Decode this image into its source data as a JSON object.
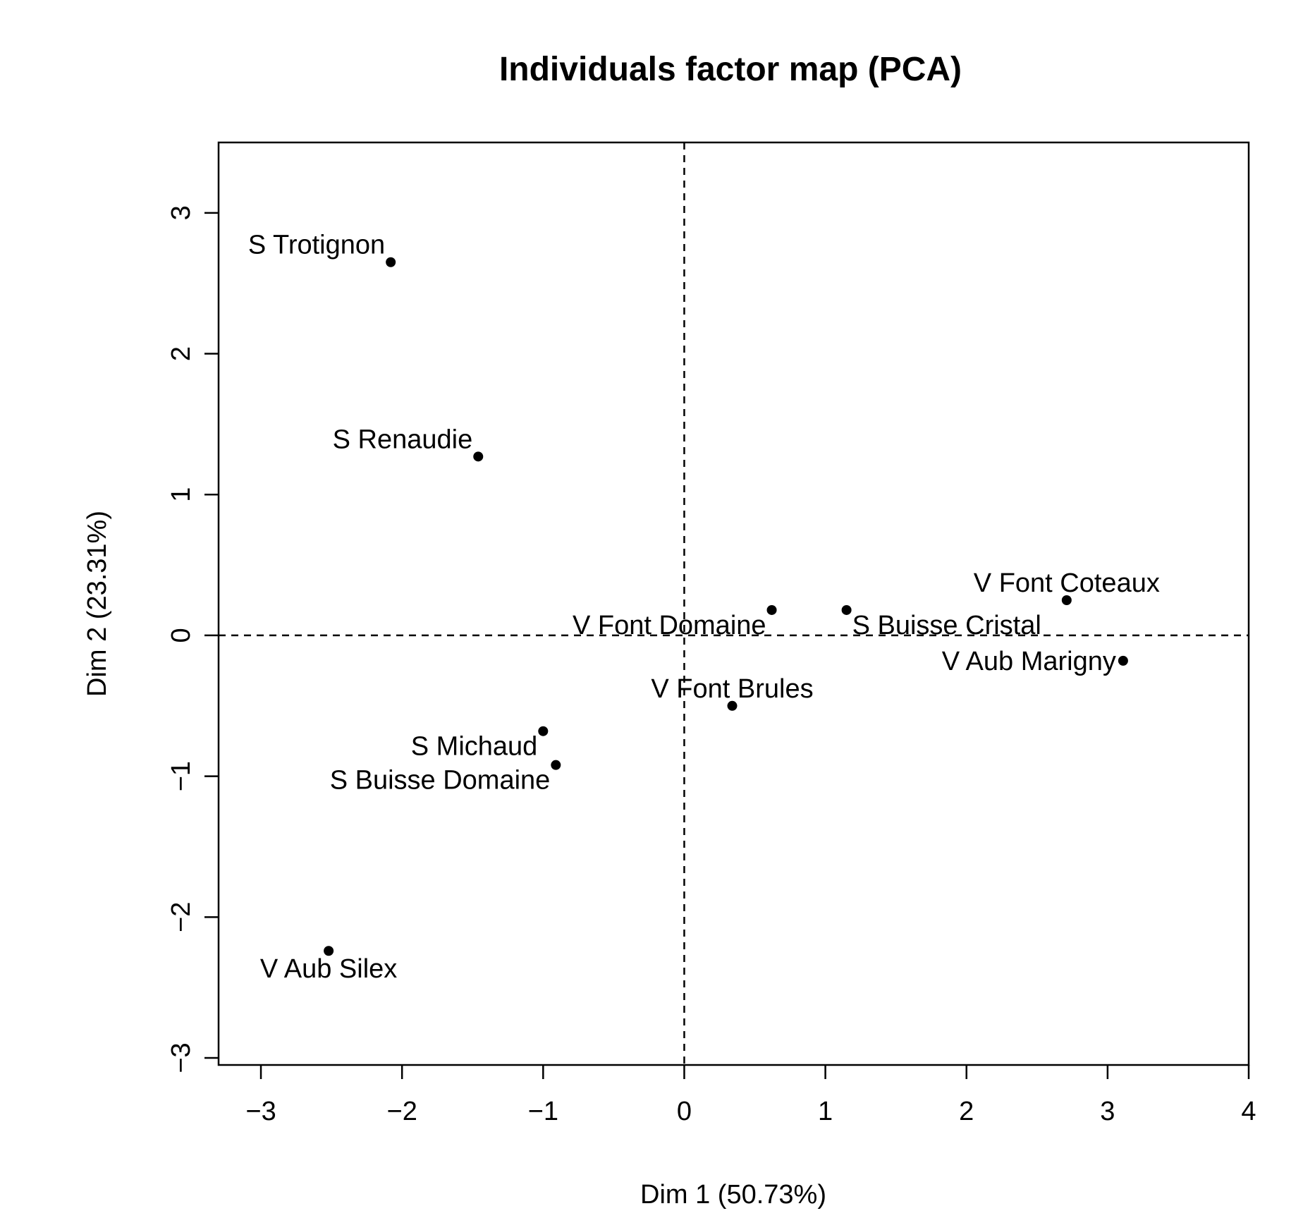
{
  "chart_data": {
    "type": "scatter",
    "title": "Individuals factor map (PCA)",
    "xlabel": "Dim 1 (50.73%)",
    "ylabel": "Dim 2 (23.31%)",
    "xlim": [
      -3.3,
      4.0
    ],
    "ylim": [
      -3.05,
      3.5
    ],
    "x_ticks": [
      -3,
      -2,
      -1,
      0,
      1,
      2,
      3,
      4
    ],
    "y_ticks": [
      -3,
      -2,
      -1,
      0,
      1,
      2,
      3
    ],
    "x_tick_labels": [
      "−3",
      "−2",
      "−1",
      "0",
      "1",
      "2",
      "3",
      "4"
    ],
    "y_tick_labels": [
      "−3",
      "−2",
      "−1",
      "0",
      "1",
      "2",
      "3"
    ],
    "reference_lines": {
      "x": 0,
      "y": 0,
      "style": "dashed"
    },
    "points": [
      {
        "label": "S Trotignon",
        "x": -2.08,
        "y": 2.65,
        "label_pos": "top-left"
      },
      {
        "label": "S Renaudie",
        "x": -1.46,
        "y": 1.27,
        "label_pos": "top-left"
      },
      {
        "label": "V Font Coteaux",
        "x": 2.71,
        "y": 0.25,
        "label_pos": "top"
      },
      {
        "label": "V Font Domaine",
        "x": 0.62,
        "y": 0.18,
        "label_pos": "bottom-left"
      },
      {
        "label": "S Buisse Cristal",
        "x": 1.15,
        "y": 0.18,
        "label_pos": "bottom-right"
      },
      {
        "label": "V Aub Marigny",
        "x": 3.11,
        "y": -0.18,
        "label_pos": "left"
      },
      {
        "label": "V Font Brules",
        "x": 0.34,
        "y": -0.5,
        "label_pos": "top"
      },
      {
        "label": "S Michaud",
        "x": -1.0,
        "y": -0.68,
        "label_pos": "bottom-left"
      },
      {
        "label": "S Buisse Domaine",
        "x": -0.91,
        "y": -0.92,
        "label_pos": "bottom-left"
      },
      {
        "label": "V Aub Silex",
        "x": -2.52,
        "y": -2.24,
        "label_pos": "bottom"
      }
    ]
  }
}
